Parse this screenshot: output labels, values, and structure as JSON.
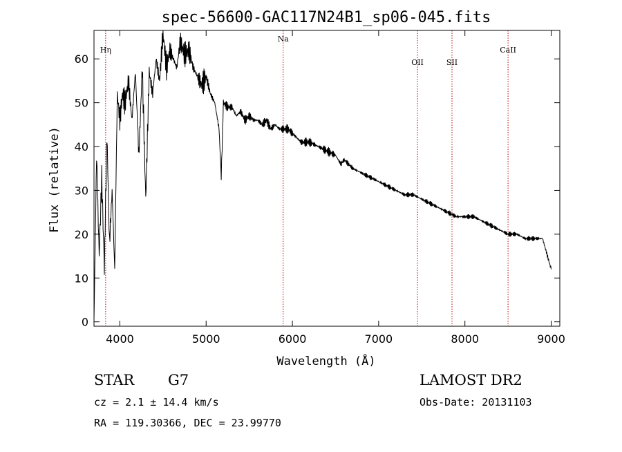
{
  "chart_data": {
    "type": "line",
    "title": "spec-56600-GAC117N24B1_sp06-045.fits",
    "xlabel": "Wavelength (Å)",
    "ylabel": "Flux (relative)",
    "xlim": [
      3700,
      9100
    ],
    "ylim": [
      -1,
      66.5
    ],
    "x_ticks": [
      4000,
      5000,
      6000,
      7000,
      8000,
      9000
    ],
    "y_ticks": [
      0,
      10,
      20,
      30,
      40,
      50,
      60
    ],
    "series": [
      {
        "name": "flux",
        "x": [
          3700,
          3730,
          3760,
          3790,
          3820,
          3850,
          3880,
          3910,
          3940,
          3970,
          4000,
          4030,
          4060,
          4100,
          4140,
          4180,
          4220,
          4260,
          4300,
          4340,
          4380,
          4420,
          4460,
          4500,
          4540,
          4580,
          4620,
          4660,
          4700,
          4750,
          4800,
          4850,
          4900,
          4950,
          5000,
          5050,
          5100,
          5150,
          5175,
          5200,
          5250,
          5300,
          5350,
          5400,
          5450,
          5500,
          5550,
          5600,
          5650,
          5700,
          5750,
          5800,
          5850,
          5890,
          5950,
          6000,
          6100,
          6200,
          6300,
          6400,
          6500,
          6563,
          6600,
          6700,
          6800,
          6900,
          7000,
          7100,
          7200,
          7300,
          7400,
          7500,
          7600,
          7700,
          7800,
          7900,
          8000,
          8100,
          8200,
          8300,
          8400,
          8500,
          8600,
          8700,
          8800,
          8900,
          9000
        ],
        "y": [
          0,
          38,
          15,
          33,
          12,
          43,
          18,
          30,
          12,
          52,
          46,
          52,
          50,
          55,
          46,
          57,
          38,
          58,
          28,
          57,
          52,
          60,
          55,
          66,
          58,
          62,
          60,
          58,
          64,
          61,
          62,
          58,
          56,
          54,
          56,
          52,
          50,
          44,
          33,
          50,
          49,
          49,
          47,
          48,
          46,
          47,
          46,
          46,
          45,
          46,
          44,
          45,
          44,
          44,
          44,
          43,
          41,
          41,
          40,
          39,
          38,
          36,
          37,
          35,
          34,
          33,
          32,
          31,
          30,
          29,
          29,
          28,
          27,
          26,
          25,
          24,
          24,
          24,
          23,
          22,
          21,
          20,
          20,
          19,
          19,
          19,
          12
        ]
      }
    ],
    "line_markers": [
      {
        "label": "Hη",
        "x": 3835
      },
      {
        "label": "Na",
        "x": 5893
      },
      {
        "label": "OII",
        "x": 7450
      },
      {
        "label": "SII",
        "x": 7850
      },
      {
        "label": "CaII",
        "x": 8500
      }
    ],
    "annotations": {
      "object_type": "STAR",
      "subclass": "G7",
      "survey": "LAMOST DR2",
      "redshift": "cz = 2.1 ± 14.4 km/s",
      "obs_date": "Obs-Date: 20131103",
      "coords": "RA = 119.30366, DEC =  23.99770"
    },
    "colors": {
      "spectrum": "#000000",
      "marker": "#c00000"
    }
  }
}
